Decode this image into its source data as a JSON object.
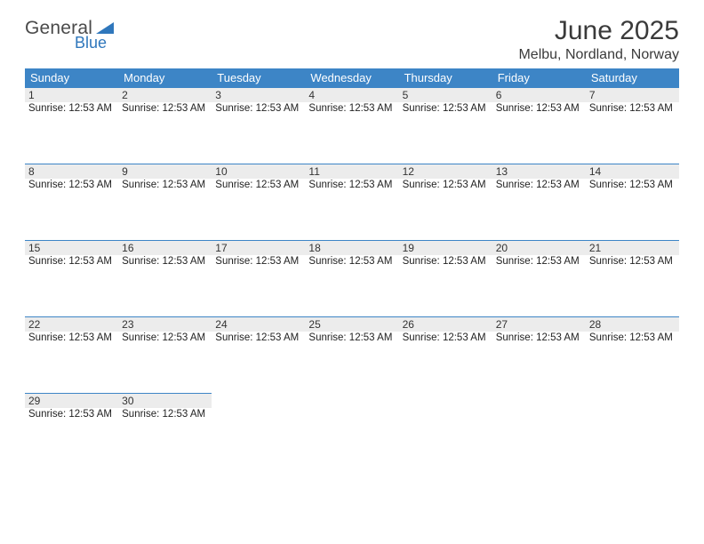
{
  "brand": {
    "part1": "General",
    "part2": "Blue",
    "part2_color": "#2f77bc",
    "triangle_color": "#2f77bc"
  },
  "title": {
    "month": "June 2025",
    "location": "Melbu, Nordland, Norway"
  },
  "colors": {
    "header_bg": "#3d85c6",
    "header_text": "#ffffff",
    "week_border": "#3d85c6",
    "daynum_band_bg": "#ececec",
    "daynum_text": "#333333",
    "info_text": "#222222"
  },
  "days_of_week": [
    "Sunday",
    "Monday",
    "Tuesday",
    "Wednesday",
    "Thursday",
    "Friday",
    "Saturday"
  ],
  "weeks": [
    [
      {
        "n": "1",
        "info": "Sunrise: 12:53 AM"
      },
      {
        "n": "2",
        "info": "Sunrise: 12:53 AM"
      },
      {
        "n": "3",
        "info": "Sunrise: 12:53 AM"
      },
      {
        "n": "4",
        "info": "Sunrise: 12:53 AM"
      },
      {
        "n": "5",
        "info": "Sunrise: 12:53 AM"
      },
      {
        "n": "6",
        "info": "Sunrise: 12:53 AM"
      },
      {
        "n": "7",
        "info": "Sunrise: 12:53 AM"
      }
    ],
    [
      {
        "n": "8",
        "info": "Sunrise: 12:53 AM"
      },
      {
        "n": "9",
        "info": "Sunrise: 12:53 AM"
      },
      {
        "n": "10",
        "info": "Sunrise: 12:53 AM"
      },
      {
        "n": "11",
        "info": "Sunrise: 12:53 AM"
      },
      {
        "n": "12",
        "info": "Sunrise: 12:53 AM"
      },
      {
        "n": "13",
        "info": "Sunrise: 12:53 AM"
      },
      {
        "n": "14",
        "info": "Sunrise: 12:53 AM"
      }
    ],
    [
      {
        "n": "15",
        "info": "Sunrise: 12:53 AM"
      },
      {
        "n": "16",
        "info": "Sunrise: 12:53 AM"
      },
      {
        "n": "17",
        "info": "Sunrise: 12:53 AM"
      },
      {
        "n": "18",
        "info": "Sunrise: 12:53 AM"
      },
      {
        "n": "19",
        "info": "Sunrise: 12:53 AM"
      },
      {
        "n": "20",
        "info": "Sunrise: 12:53 AM"
      },
      {
        "n": "21",
        "info": "Sunrise: 12:53 AM"
      }
    ],
    [
      {
        "n": "22",
        "info": "Sunrise: 12:53 AM"
      },
      {
        "n": "23",
        "info": "Sunrise: 12:53 AM"
      },
      {
        "n": "24",
        "info": "Sunrise: 12:53 AM"
      },
      {
        "n": "25",
        "info": "Sunrise: 12:53 AM"
      },
      {
        "n": "26",
        "info": "Sunrise: 12:53 AM"
      },
      {
        "n": "27",
        "info": "Sunrise: 12:53 AM"
      },
      {
        "n": "28",
        "info": "Sunrise: 12:53 AM"
      }
    ],
    [
      {
        "n": "29",
        "info": "Sunrise: 12:53 AM"
      },
      {
        "n": "30",
        "info": "Sunrise: 12:53 AM"
      },
      null,
      null,
      null,
      null,
      null
    ]
  ]
}
